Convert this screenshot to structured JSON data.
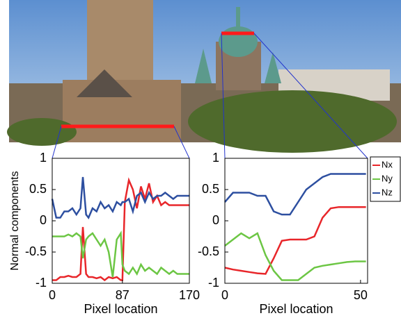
{
  "chart_data": [
    {
      "type": "line",
      "x": [
        0,
        5,
        10,
        15,
        20,
        25,
        30,
        35,
        38,
        42,
        45,
        50,
        55,
        60,
        65,
        70,
        75,
        80,
        85,
        87,
        90,
        95,
        100,
        105,
        110,
        115,
        120,
        125,
        130,
        135,
        140,
        145,
        150,
        155,
        160,
        165,
        170
      ],
      "series": [
        {
          "color": "#e8262a",
          "values": [
            -0.95,
            -0.95,
            -0.9,
            -0.9,
            -0.88,
            -0.9,
            -0.9,
            -0.85,
            -0.1,
            -0.85,
            -0.9,
            -0.9,
            -0.92,
            -0.9,
            -0.95,
            -0.9,
            -0.92,
            -0.9,
            -0.95,
            -0.95,
            0.3,
            0.65,
            0.5,
            0.2,
            0.55,
            0.35,
            0.6,
            0.3,
            0.4,
            0.25,
            0.3,
            0.25,
            0.25,
            0.25,
            0.25,
            0.25,
            0.25
          ]
        },
        {
          "color": "#6cc644",
          "values": [
            -0.25,
            -0.25,
            -0.25,
            -0.25,
            -0.22,
            -0.25,
            -0.2,
            -0.25,
            -0.6,
            -0.3,
            -0.25,
            -0.2,
            -0.3,
            -0.4,
            -0.3,
            -0.5,
            -0.9,
            -0.3,
            -0.2,
            -0.7,
            -0.8,
            -0.85,
            -0.75,
            -0.85,
            -0.7,
            -0.8,
            -0.75,
            -0.8,
            -0.85,
            -0.75,
            -0.8,
            -0.85,
            -0.8,
            -0.85,
            -0.85,
            -0.85,
            -0.85
          ]
        },
        {
          "color": "#2d4fa0",
          "values": [
            0.35,
            0.05,
            0.05,
            0.15,
            0.15,
            0.2,
            0.1,
            0.2,
            0.7,
            0.1,
            0.05,
            0.2,
            0.15,
            0.3,
            0.2,
            0.25,
            0.15,
            0.3,
            0.25,
            0.3,
            0.3,
            0.35,
            0.15,
            0.4,
            0.45,
            0.3,
            0.45,
            0.35,
            0.4,
            0.4,
            0.45,
            0.4,
            0.35,
            0.4,
            0.4,
            0.4,
            0.4
          ]
        }
      ],
      "xlim": [
        0,
        170
      ],
      "xticks": [
        0,
        87,
        170
      ],
      "ylim": [
        -1,
        1
      ],
      "yticks": [
        -1,
        -0.5,
        0,
        0.5,
        1
      ],
      "x_label": "Pixel location",
      "y_label": "Normal components"
    },
    {
      "type": "line",
      "x": [
        0,
        3,
        6,
        9,
        12,
        15,
        18,
        21,
        24,
        27,
        30,
        33,
        36,
        39,
        42,
        45,
        48,
        52
      ],
      "series": [
        {
          "name": "Nx",
          "color": "#e8262a",
          "values": [
            -0.75,
            -0.78,
            -0.8,
            -0.82,
            -0.84,
            -0.85,
            -0.6,
            -0.32,
            -0.3,
            -0.3,
            -0.3,
            -0.25,
            0.05,
            0.2,
            0.22,
            0.22,
            0.22,
            0.22
          ]
        },
        {
          "name": "Ny",
          "color": "#6cc644",
          "values": [
            -0.4,
            -0.3,
            -0.2,
            -0.28,
            -0.2,
            -0.55,
            -0.8,
            -0.95,
            -0.95,
            -0.95,
            -0.85,
            -0.75,
            -0.72,
            -0.7,
            -0.68,
            -0.66,
            -0.65,
            -0.65
          ]
        },
        {
          "name": "Nz",
          "color": "#2d4fa0",
          "values": [
            0.3,
            0.45,
            0.45,
            0.45,
            0.4,
            0.4,
            0.15,
            0.1,
            0.1,
            0.3,
            0.5,
            0.6,
            0.7,
            0.75,
            0.75,
            0.75,
            0.75,
            0.75
          ]
        }
      ],
      "xlim": [
        0,
        52.6
      ],
      "xticks": [
        0,
        50
      ],
      "ylim": [
        -1,
        1
      ],
      "yticks": [
        -1,
        -0.5,
        0,
        0.5,
        1
      ],
      "x_label": "Pixel location"
    }
  ]
}
